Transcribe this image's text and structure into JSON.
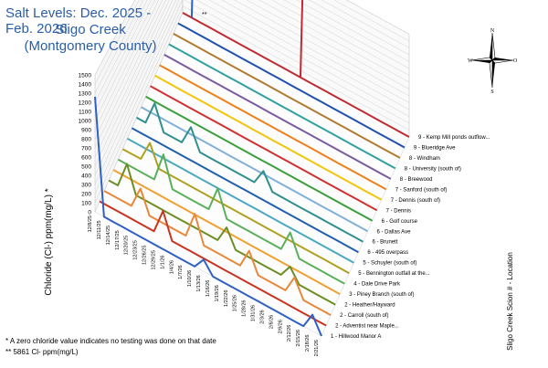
{
  "title": {
    "line1": "Salt Levels: Dec. 2025 - Feb. 2026",
    "line2": "Sligo Creek",
    "line3": "(Montgomery County)"
  },
  "footnotes": {
    "zero_note": "* A zero chloride value indicates no testing was done on that date",
    "outlier_note": "** 5861 Cl- ppm(mg/L)"
  },
  "outlier_marker": "**",
  "compass": {
    "n": "N",
    "s": "S",
    "w": "W",
    "o": "O"
  },
  "chart_data": {
    "type": "line",
    "title": "Salt Levels: Dec. 2025 - Feb. 2026",
    "subtitle": "Sligo Creek (Montgomery County)",
    "ylabel": "Chloride (Cl-) ppm(mg/L) *",
    "zlabel": "Sligo Creek Scion # - Location",
    "ylim": [
      0,
      1500
    ],
    "y_ticks": [
      0,
      100,
      200,
      300,
      400,
      500,
      600,
      700,
      800,
      900,
      1000,
      1100,
      1200,
      1300,
      1400,
      1500
    ],
    "categories": [
      "12/8/25",
      "12/11/25",
      "12/14/25",
      "12/17/25",
      "12/20/25",
      "12/23/25",
      "12/26/25",
      "12/29/25",
      "1/1/26",
      "1/4/26",
      "1/7/26",
      "1/10/26",
      "1/13/26",
      "1/16/26",
      "1/19/26",
      "1/22/26",
      "1/25/26",
      "1/28/26",
      "1/31/26",
      "2/3/26",
      "2/6/26",
      "2/9/26",
      "2/12/26",
      "2/15/26",
      "2/18/26",
      "2/21/26"
    ],
    "series": [
      {
        "name": "1 - Hillwood Manor A",
        "color": "#2f60c4",
        "values": [
          1260,
          0,
          0,
          0,
          0,
          0,
          0,
          0,
          0,
          0,
          0,
          0,
          130,
          0,
          0,
          0,
          0,
          0,
          0,
          0,
          0,
          0,
          0,
          0,
          180,
          0
        ]
      },
      {
        "name": "2 - Adventist near Maple...",
        "color": "#c9331f",
        "values": [
          0,
          0,
          0,
          0,
          0,
          0,
          0,
          280,
          0,
          0,
          0,
          0,
          0,
          0,
          0,
          0,
          0,
          0,
          0,
          0,
          0,
          0,
          0,
          0,
          0,
          0
        ]
      },
      {
        "name": "2 - Carroll (south of)",
        "color": "#e8883a",
        "values": [
          0,
          0,
          0,
          0,
          250,
          0,
          0,
          0,
          0,
          0,
          300,
          0,
          0,
          0,
          0,
          0,
          220,
          0,
          0,
          0,
          0,
          200,
          0,
          0,
          0,
          0
        ]
      },
      {
        "name": "2 - Heather/Hayward",
        "color": "#6b8e23",
        "values": [
          0,
          0,
          300,
          0,
          0,
          0,
          0,
          0,
          0,
          0,
          0,
          0,
          0,
          200,
          0,
          0,
          0,
          0,
          0,
          0,
          150,
          0,
          0,
          0,
          0,
          0
        ]
      },
      {
        "name": "3 - Piney Branch (south of)",
        "color": "#f0a030",
        "values": [
          0,
          0,
          0,
          0,
          0,
          0,
          0,
          0,
          0,
          0,
          0,
          0,
          0,
          0,
          0,
          0,
          0,
          0,
          0,
          0,
          0,
          0,
          0,
          0,
          0,
          0
        ]
      },
      {
        "name": "4 - Dale Drive Park",
        "color": "#5ab05a",
        "values": [
          0,
          0,
          0,
          0,
          0,
          350,
          0,
          0,
          0,
          0,
          0,
          300,
          0,
          0,
          0,
          0,
          0,
          0,
          0,
          250,
          0,
          0,
          0,
          0,
          0,
          0
        ]
      },
      {
        "name": "5 - Bennington outfall at the...",
        "color": "#b0a020",
        "values": [
          0,
          0,
          0,
          250,
          0,
          0,
          0,
          0,
          0,
          0,
          0,
          0,
          0,
          0,
          0,
          0,
          0,
          0,
          0,
          0,
          0,
          0,
          0,
          0,
          0,
          0
        ]
      },
      {
        "name": "5 - Schuyler (south of)",
        "color": "#4aa8c0",
        "values": [
          0,
          0,
          0,
          0,
          0,
          0,
          0,
          0,
          0,
          0,
          0,
          0,
          0,
          0,
          0,
          0,
          0,
          0,
          0,
          0,
          0,
          0,
          0,
          0,
          0,
          0
        ]
      },
      {
        "name": "6 - 495 overpass",
        "color": "#1f5fae",
        "values": [
          0,
          0,
          0,
          0,
          0,
          0,
          0,
          0,
          0,
          0,
          0,
          0,
          0,
          0,
          0,
          0,
          0,
          0,
          0,
          0,
          0,
          0,
          0,
          0,
          0,
          0
        ]
      },
      {
        "name": "6 - Brunett",
        "color": "#2f8f8f",
        "values": [
          0,
          0,
          300,
          0,
          0,
          0,
          250,
          0,
          0,
          0,
          0,
          0,
          0,
          0,
          200,
          0,
          0,
          0,
          0,
          0,
          0,
          0,
          0,
          0,
          0,
          0
        ]
      },
      {
        "name": "6 - Dallas Ave",
        "color": "#7fb0d8",
        "values": [
          0,
          0,
          0,
          0,
          0,
          0,
          0,
          0,
          0,
          0,
          0,
          0,
          0,
          0,
          0,
          0,
          0,
          0,
          0,
          0,
          0,
          0,
          0,
          0,
          0,
          0
        ]
      },
      {
        "name": "6 - Golf course",
        "color": "#3a9f3a",
        "values": [
          0,
          0,
          0,
          0,
          0,
          0,
          0,
          0,
          0,
          0,
          0,
          0,
          0,
          0,
          0,
          0,
          0,
          0,
          0,
          0,
          0,
          0,
          0,
          0,
          0,
          0
        ]
      },
      {
        "name": "7 - Dennis",
        "color": "#d03030",
        "values": [
          0,
          0,
          0,
          0,
          0,
          0,
          0,
          0,
          0,
          0,
          0,
          0,
          0,
          0,
          0,
          0,
          0,
          0,
          0,
          0,
          0,
          0,
          0,
          0,
          0,
          0
        ]
      },
      {
        "name": "7 - Dennis (south of)",
        "color": "#f2c40c",
        "values": [
          0,
          0,
          0,
          0,
          0,
          0,
          0,
          0,
          0,
          0,
          0,
          0,
          0,
          0,
          0,
          0,
          0,
          0,
          0,
          0,
          0,
          0,
          0,
          0,
          0,
          0
        ]
      },
      {
        "name": "7 - Sanford (south of)",
        "color": "#ef7f1a",
        "values": [
          0,
          0,
          0,
          0,
          0,
          0,
          0,
          0,
          0,
          0,
          0,
          0,
          0,
          0,
          0,
          0,
          0,
          0,
          0,
          0,
          0,
          0,
          0,
          0,
          0,
          0
        ]
      },
      {
        "name": "8 - Breewood",
        "color": "#7a5aa0",
        "values": [
          0,
          0,
          0,
          0,
          0,
          0,
          0,
          0,
          0,
          0,
          0,
          0,
          0,
          0,
          0,
          0,
          0,
          0,
          0,
          0,
          0,
          0,
          0,
          0,
          0,
          0
        ]
      },
      {
        "name": "8 - University (south of)",
        "color": "#2fa0a0",
        "values": [
          0,
          0,
          0,
          0,
          0,
          0,
          0,
          0,
          0,
          0,
          0,
          0,
          0,
          0,
          0,
          0,
          0,
          0,
          0,
          0,
          0,
          0,
          0,
          0,
          0,
          0
        ]
      },
      {
        "name": "8 - Windham",
        "color": "#b07a30",
        "values": [
          0,
          0,
          0,
          0,
          0,
          0,
          0,
          0,
          0,
          0,
          0,
          0,
          0,
          0,
          0,
          0,
          0,
          0,
          0,
          0,
          0,
          0,
          0,
          0,
          0,
          0
        ]
      },
      {
        "name": "9 - Blueridge Ave",
        "color": "#2050b0",
        "values": [
          0,
          0,
          0,
          0,
          0,
          0,
          0,
          0,
          0,
          0,
          0,
          0,
          0,
          0,
          0,
          0,
          0,
          0,
          0,
          0,
          0,
          0,
          0,
          0,
          0,
          0
        ]
      },
      {
        "name": "9 - Kemp Mill ponds outflow...",
        "color": "#c02a30",
        "values": [
          0,
          0,
          0,
          0,
          0,
          0,
          0,
          0,
          0,
          0,
          0,
          0,
          0,
          0,
          0,
          0,
          0,
          0,
          0,
          0,
          0,
          0,
          0,
          0,
          0,
          0
        ]
      }
    ],
    "grid": true,
    "legend": "right, labels at series ends"
  }
}
